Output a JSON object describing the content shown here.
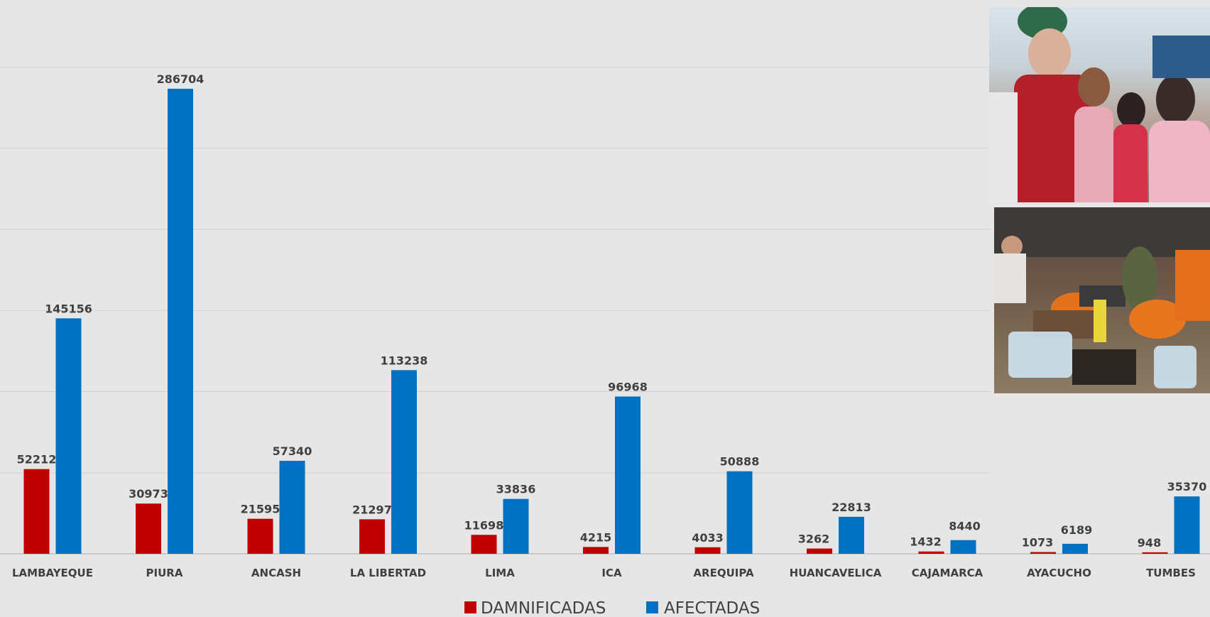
{
  "chart_data": {
    "type": "bar",
    "categories": [
      "LAMBAYEQUE",
      "PIURA",
      "ANCASH",
      "LA LIBERTAD",
      "LIMA",
      "ICA",
      "AREQUIPA",
      "HUANCAVELICA",
      "CAJAMARCA",
      "AYACUCHO",
      "TUMBES"
    ],
    "series": [
      {
        "name": "DAMNIFICADAS",
        "color": "#c00000",
        "values": [
          52212,
          30973,
          21595,
          21297,
          11698,
          4215,
          4033,
          3262,
          1432,
          1073,
          948
        ]
      },
      {
        "name": "AFECTADAS",
        "color": "#0070c0",
        "values": [
          145156,
          286704,
          57340,
          113238,
          33836,
          96968,
          50888,
          22813,
          8440,
          6189,
          35370
        ]
      }
    ],
    "ylim": [
      0,
      300000
    ],
    "grid": true,
    "legend": "bottom-center"
  },
  "photos": [
    {
      "icon": "people-crowd-photo-icon"
    },
    {
      "icon": "aid-distribution-photo-icon"
    }
  ]
}
